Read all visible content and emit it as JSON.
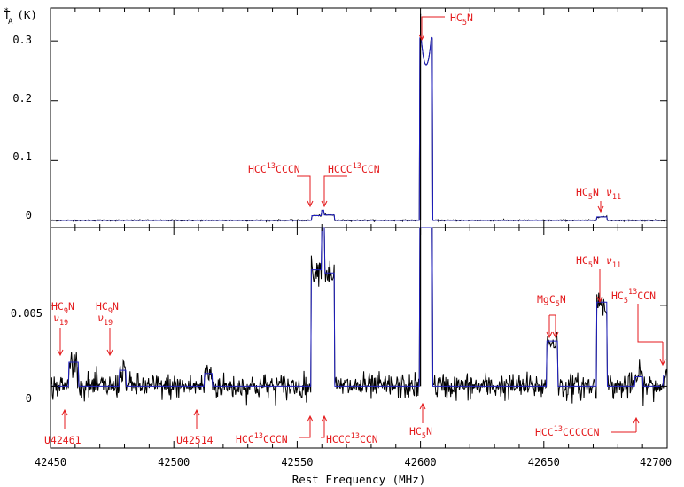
{
  "chart_data": {
    "type": "line",
    "xlabel": "Rest Frequency (MHz)",
    "ylabel": "T*A (K)",
    "xlim": [
      42450,
      42700
    ],
    "x_ticks": [
      42450,
      42500,
      42550,
      42600,
      42650,
      42700
    ],
    "colors": {
      "observed": "#000000",
      "model": "#1f1fbf",
      "annotation": "#e41a1c"
    },
    "panels": [
      {
        "name": "full-scale",
        "ylim": [
          -0.012,
          0.355
        ],
        "y_ticks": [
          0,
          0.1,
          0.2,
          0.3
        ],
        "noise_sigma": 0.0006,
        "lines": [
          {
            "x": 42558.3,
            "width": 2.5,
            "peak": 0.008
          },
          {
            "x": 42562.5,
            "width": 2.5,
            "peak": 0.009
          },
          {
            "x": 42602.3,
            "width": 2.6,
            "peak": 0.305,
            "dip": 0.26
          },
          {
            "x": 42673.5,
            "width": 2.0,
            "peak": 0.006
          }
        ],
        "spikes": [
          {
            "x": 42600.0,
            "y": 0.345
          }
        ],
        "annotations": [
          {
            "label": "HCC13CCCN",
            "x": 42558.0,
            "y": 0.013
          },
          {
            "label": "HCCC13CCN",
            "x": 42562.5,
            "y": 0.013
          },
          {
            "label": "HC5N",
            "x": 42603.0,
            "y": 0.27
          },
          {
            "label": "HC5N ν11",
            "x": 42673.5,
            "y": 0.009
          }
        ]
      },
      {
        "name": "zoomed",
        "ylim": [
          -0.0038,
          0.0098
        ],
        "y_ticks": [
          0,
          0.005
        ],
        "noise_sigma": 0.0004,
        "lines": [
          {
            "x": 42459.3,
            "width": 2.0,
            "peak": 0.0015
          },
          {
            "x": 42479.2,
            "width": 1.4,
            "peak": 0.001
          },
          {
            "x": 42514.0,
            "width": 1.6,
            "peak": 0.0008
          },
          {
            "x": 42558.3,
            "width": 2.7,
            "peak": 0.0072
          },
          {
            "x": 42562.5,
            "width": 2.7,
            "peak": 0.007
          },
          {
            "x": 42602.3,
            "width": 2.6,
            "peak": 0.012
          },
          {
            "x": 42653.3,
            "width": 2.2,
            "peak": 0.0028
          },
          {
            "x": 42673.5,
            "width": 2.2,
            "peak": 0.0052
          },
          {
            "x": 42688.5,
            "width": 1.6,
            "peak": 0.0006
          },
          {
            "x": 42699.5,
            "width": 1.2,
            "peak": 0.0007
          }
        ],
        "spikes": [
          {
            "x": 42600.0,
            "y": 0.012
          }
        ],
        "annotations": [
          {
            "label": "HC9N ν19",
            "x": 42459.3,
            "y": 0.0022
          },
          {
            "label": "HC9N ν19",
            "x": 42479.2,
            "y": 0.0018
          },
          {
            "label": "U42461",
            "x": 42461.0,
            "y": -0.001
          },
          {
            "label": "U42514",
            "x": 42514.0,
            "y": -0.001
          },
          {
            "label": "HCC13CCCN",
            "x": 42558.3,
            "y": -0.0007
          },
          {
            "label": "HCCC13CCN",
            "x": 42564.5,
            "y": -0.0007
          },
          {
            "label": "HC5N",
            "x": 42603.5,
            "y": -0.0007
          },
          {
            "label": "MgC5N",
            "x": 42653.3,
            "y": 0.0033
          },
          {
            "label": "HC5N ν11",
            "x": 42673.5,
            "y": 0.0059
          },
          {
            "label": "HC5 13CCN",
            "x": 42699.5,
            "y": 0.0015
          },
          {
            "label": "HCC13CCCCCN",
            "x": 42688.5,
            "y": -0.0014
          }
        ]
      }
    ]
  },
  "labels": {
    "ylabel_main": "T",
    "ylabel_sup": "*",
    "ylabel_sub": "A",
    "ylabel_unit": "(K)",
    "xlabel": "Rest Frequency (MHz)",
    "x_ticks": [
      "42450",
      "42500",
      "42550",
      "42600",
      "42650",
      "42700"
    ],
    "top_y_ticks": [
      "0",
      "0.1",
      "0.2",
      "0.3"
    ],
    "bottom_y_ticks": [
      "0",
      "0.005"
    ],
    "top_annotations": {
      "hcc13cccn": {
        "a": "HCC",
        "sup": "13",
        "b": "CCCN"
      },
      "hccc13ccn": {
        "a": "HCCC",
        "sup": "13",
        "b": "CCN"
      },
      "hc5n": {
        "a": "HC",
        "sub": "5",
        "b": "N"
      },
      "hc5n_v11": {
        "a": "HC",
        "sub": "5",
        "b": "N",
        "nu": "ν",
        "nusub": "11"
      }
    },
    "bottom_annotations": {
      "hc9n_a": {
        "a": "HC",
        "sub": "9",
        "b": "N",
        "nu": "ν",
        "nusub": "19"
      },
      "hc9n_b": {
        "a": "HC",
        "sub": "9",
        "b": "N",
        "nu": "ν",
        "nusub": "19"
      },
      "u42461": "U42461",
      "u42514": "U42514",
      "hcc13cccn": {
        "a": "HCC",
        "sup": "13",
        "b": "CCCN"
      },
      "hccc13ccn": {
        "a": "HCCC",
        "sup": "13",
        "b": "CCN"
      },
      "hc5n": {
        "a": "HC",
        "sub": "5",
        "b": "N"
      },
      "mgc5n": {
        "a": "MgC",
        "sub": "5",
        "b": "N"
      },
      "hc5n_v11": {
        "a": "HC",
        "sub": "5",
        "b": "N",
        "nu": "ν",
        "nusub": "11"
      },
      "hc5_13ccn": {
        "a": "HC",
        "sub": "5",
        "sup": "13",
        "b": "CCN"
      },
      "hcc13cccccn": {
        "a": "HCC",
        "sup": "13",
        "b": "CCCCCN"
      }
    }
  }
}
